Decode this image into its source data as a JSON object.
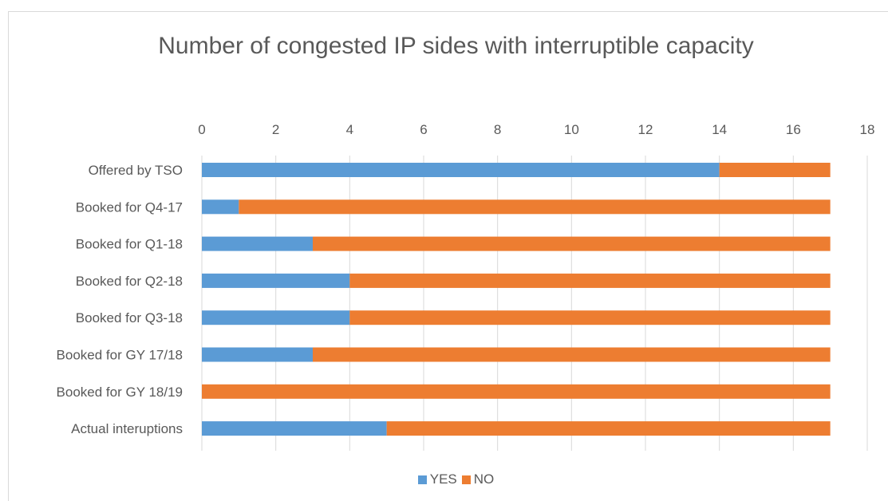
{
  "chart_data": {
    "type": "bar",
    "orientation": "horizontal",
    "stacked": true,
    "title": "Number of congested IP sides with interruptible capacity",
    "categories": [
      "Offered by TSO",
      "Booked for Q4-17",
      "Booked for Q1-18",
      "Booked for Q2-18",
      "Booked for Q3-18",
      "Booked for GY 17/18",
      "Booked for GY 18/19",
      "Actual interuptions"
    ],
    "series": [
      {
        "name": "YES",
        "color": "#5b9bd5",
        "values": [
          14,
          1,
          3,
          4,
          4,
          3,
          0,
          5
        ]
      },
      {
        "name": "NO",
        "color": "#ed7d31",
        "values": [
          3,
          16,
          14,
          13,
          13,
          14,
          17,
          12
        ]
      }
    ],
    "xlim": [
      0,
      18
    ],
    "xticks": [
      "0",
      "2",
      "4",
      "6",
      "8",
      "10",
      "12",
      "14",
      "16",
      "18"
    ],
    "xaxis_position": "top",
    "grid": true,
    "legend_position": "bottom"
  }
}
